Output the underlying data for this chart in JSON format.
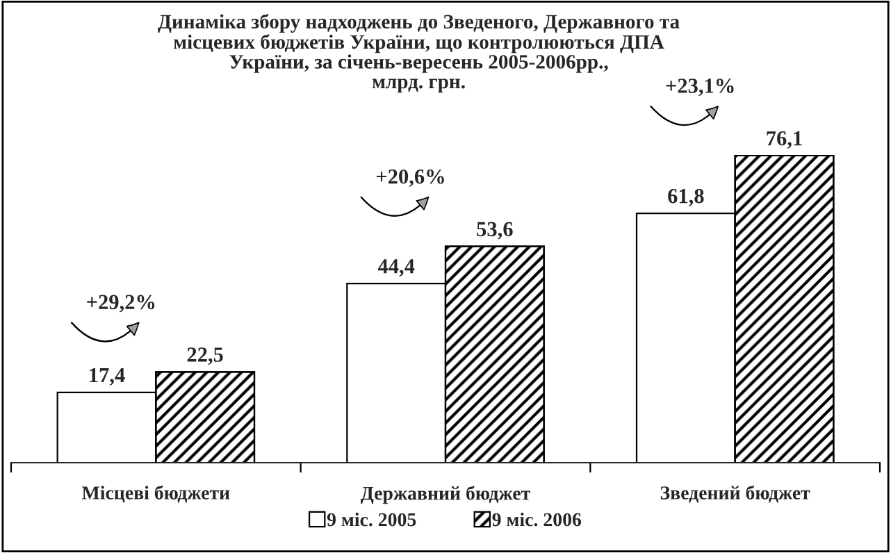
{
  "chart_data": {
    "type": "bar",
    "title": "Динаміка збору надходжень до Зведеного, Державного та\nмісцевих бюджетів України, що контролюються ДПА\nУкраїни, за січень-вересень 2005-2006рр.,\nмлрд. грн.",
    "categories": [
      "Місцеві бюджети",
      "Державний бюджет",
      "Зведений бюджет"
    ],
    "series": [
      {
        "name": "9 міс. 2005",
        "color": "#ffffff",
        "values": [
          17.4,
          44.4,
          61.8
        ],
        "value_labels": [
          "17,4",
          "44,4",
          "61,8"
        ]
      },
      {
        "name": "9 міс. 2006",
        "color": "#000000",
        "values": [
          22.5,
          53.6,
          76.1
        ],
        "value_labels": [
          "22,5",
          "53,6",
          "76,1"
        ]
      }
    ],
    "annotations": [
      "+29,2%",
      "+20,6%",
      "+23,1%"
    ],
    "legend": "bottom"
  }
}
